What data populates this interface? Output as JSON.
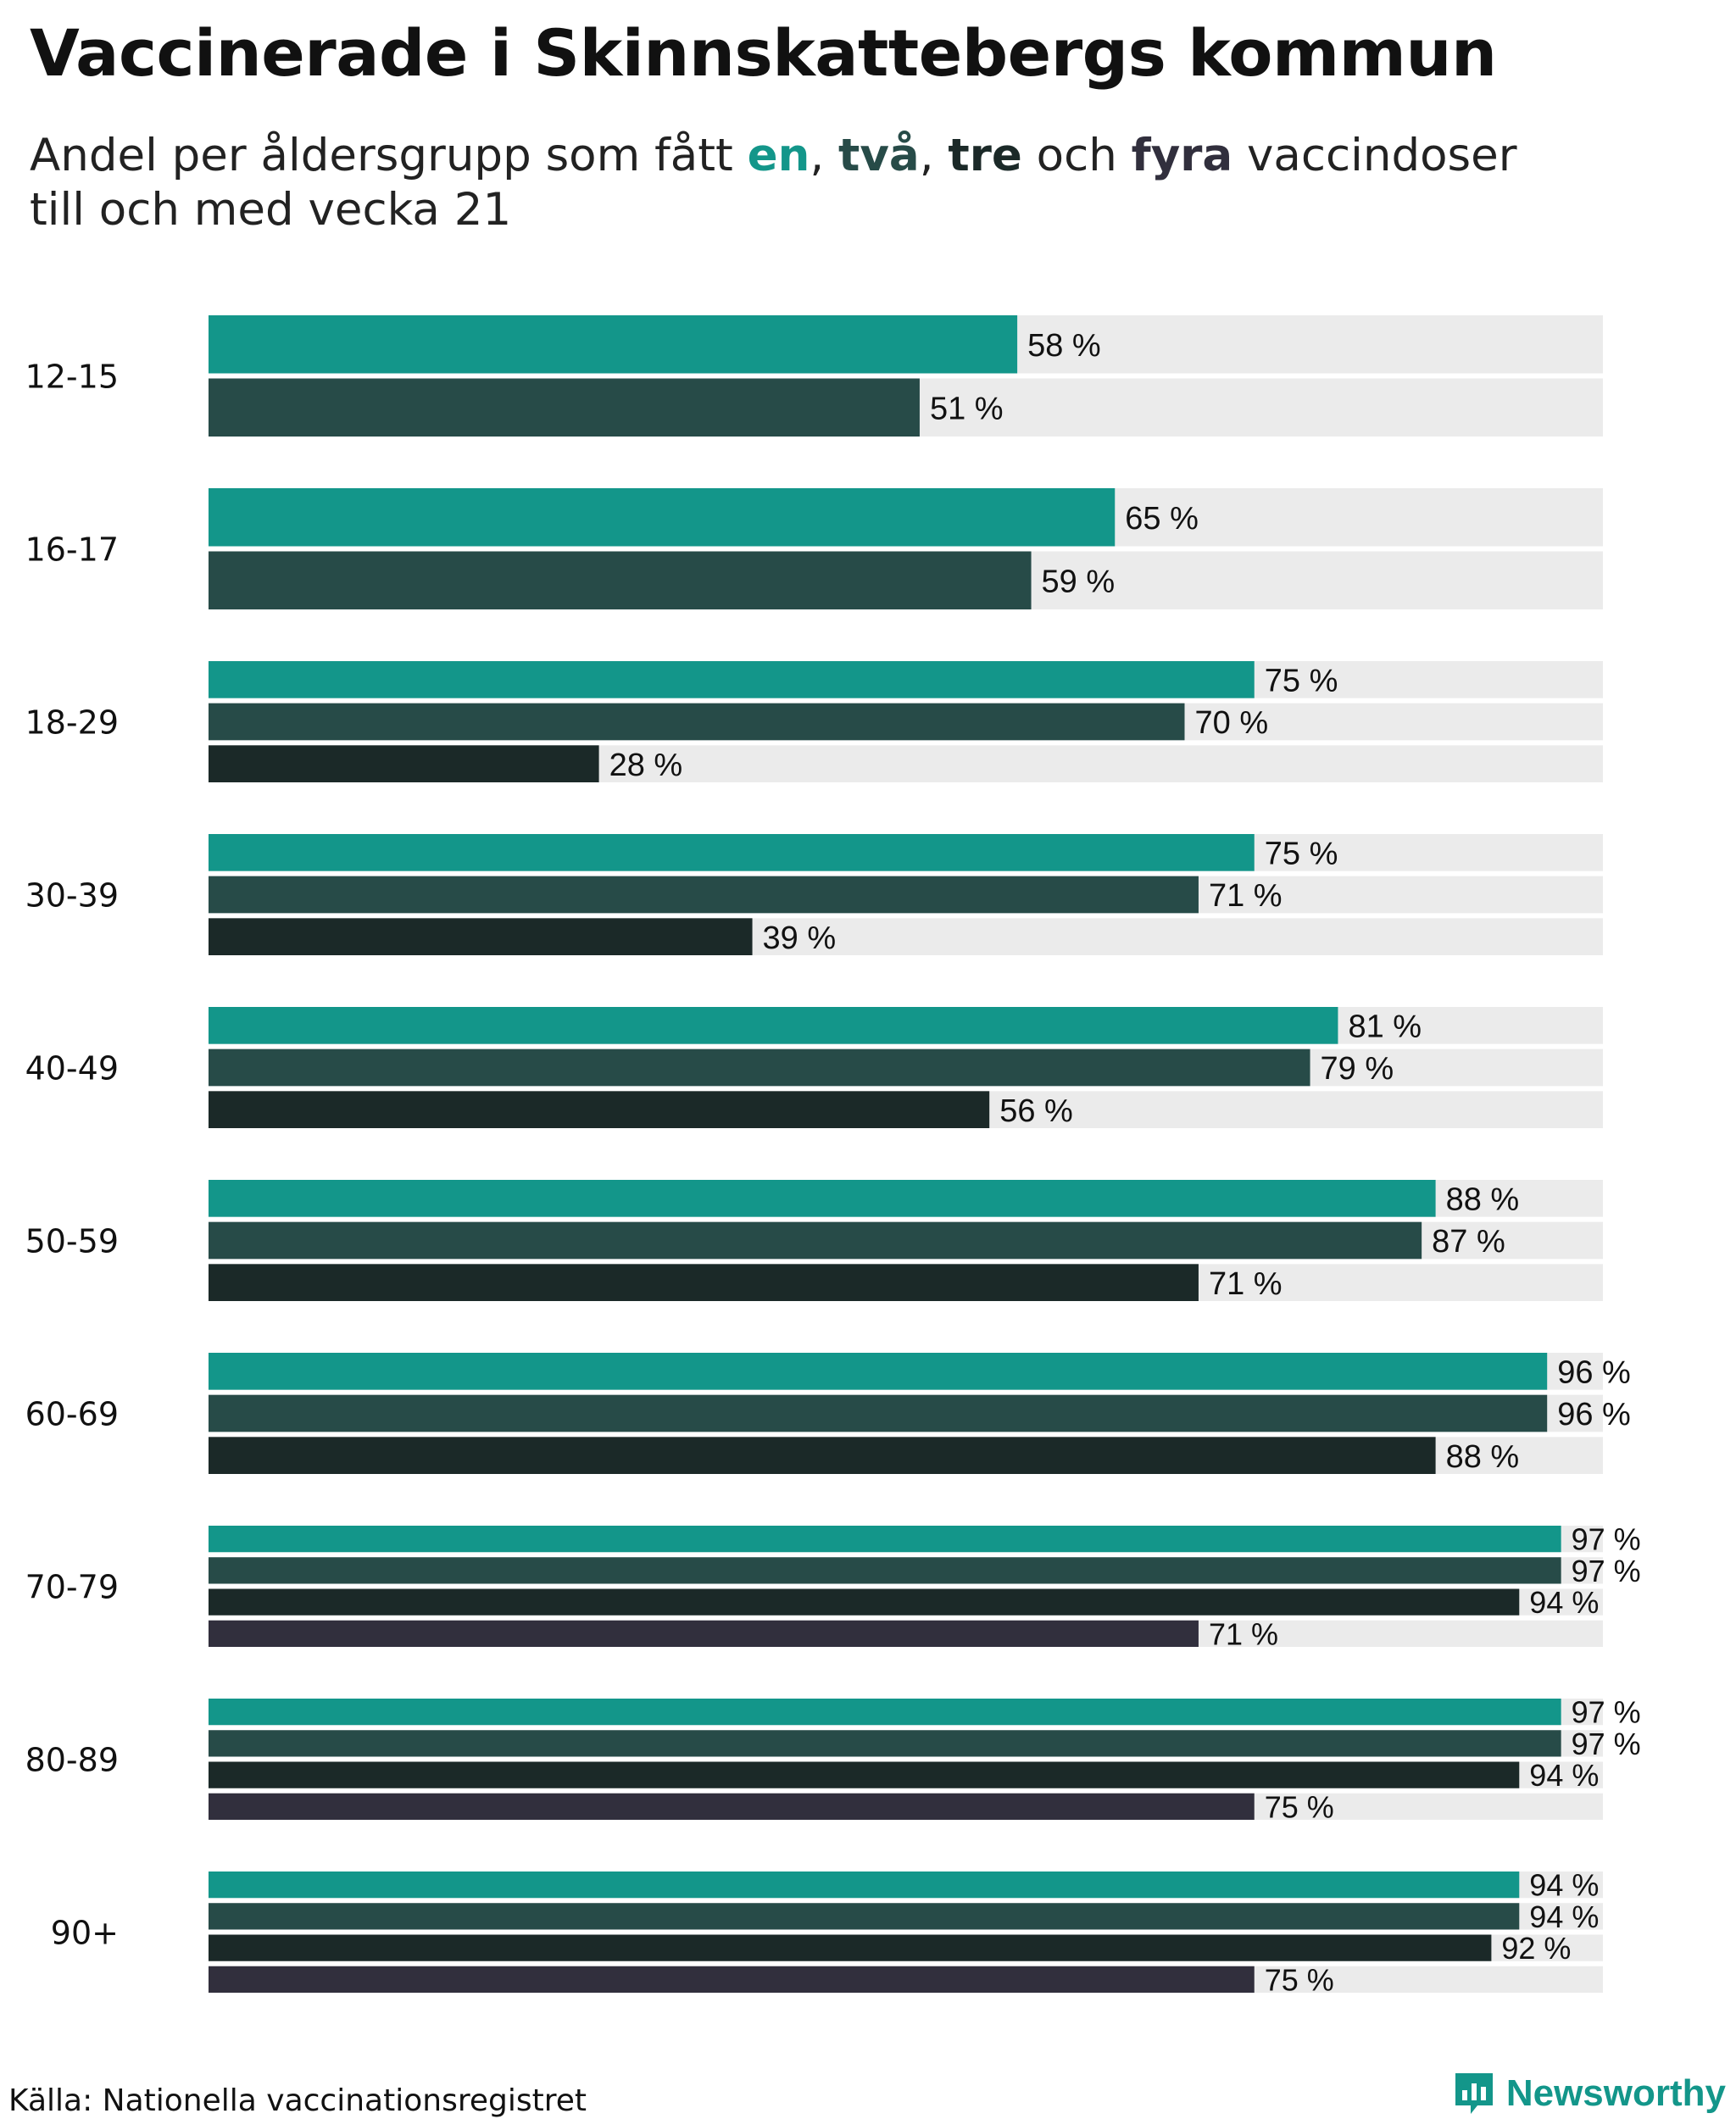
{
  "title": "Vaccinerade i Skinnskattebergs kommun",
  "subtitle": {
    "prefix": "Andel per åldersgrupp som fått ",
    "k1": "en",
    "sep1": ", ",
    "k2": "två",
    "sep2": ", ",
    "k3": "tre",
    "mid": " och ",
    "k4": "fyra",
    "suffix": " vaccindoser",
    "line2": "till och med vecka 21"
  },
  "source": "Källa: Nationella vaccinationsregistret",
  "brand": "Newsworthy",
  "colors": {
    "dose1": "#13968a",
    "dose2": "#274b48",
    "dose3": "#1b2928",
    "dose4": "#312f3d",
    "track": "#ebebeb",
    "brand": "#13968a"
  },
  "chart_data": {
    "type": "bar",
    "orientation": "horizontal",
    "categories": [
      "12-15",
      "16-17",
      "18-29",
      "30-39",
      "40-49",
      "50-59",
      "60-69",
      "70-79",
      "80-89",
      "90+"
    ],
    "series": [
      {
        "name": "en",
        "values": [
          58,
          65,
          75,
          75,
          81,
          88,
          96,
          97,
          97,
          94
        ]
      },
      {
        "name": "två",
        "values": [
          51,
          59,
          70,
          71,
          79,
          87,
          96,
          97,
          97,
          94
        ]
      },
      {
        "name": "tre",
        "values": [
          null,
          null,
          28,
          39,
          56,
          71,
          88,
          94,
          94,
          92
        ]
      },
      {
        "name": "fyra",
        "values": [
          null,
          null,
          null,
          null,
          null,
          null,
          null,
          71,
          75,
          75
        ]
      }
    ],
    "value_suffix": " %",
    "xlim": [
      0,
      100
    ],
    "grid": false,
    "legend": "subtitle"
  }
}
